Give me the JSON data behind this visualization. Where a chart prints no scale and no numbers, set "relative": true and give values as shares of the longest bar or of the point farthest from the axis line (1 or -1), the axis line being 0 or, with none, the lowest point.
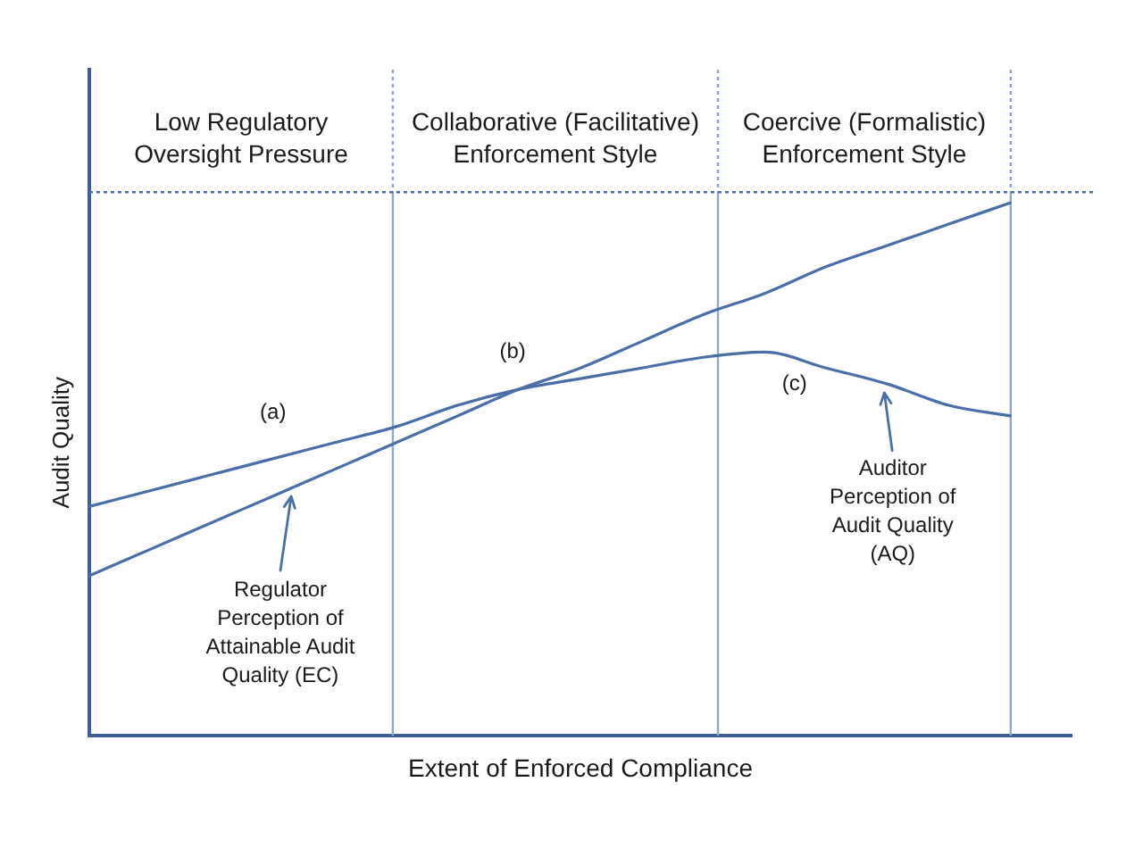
{
  "chart_data": {
    "type": "line",
    "xlabel": "Extent of Enforced Compliance",
    "ylabel": "Audit Quality",
    "relative": true,
    "categories": [
      null,
      null,
      null,
      null,
      null,
      null,
      null,
      null,
      null,
      null,
      null,
      null,
      null,
      null,
      null,
      null,
      null
    ],
    "series": [
      {
        "name": "Regulator Perception of Attainable Audit Quality (EC)",
        "color": "#4a6fa8",
        "values": [
          0.3,
          0.35,
          0.4,
          0.45,
          0.5,
          0.55,
          0.6,
          0.65,
          0.69,
          0.74,
          0.79,
          0.83,
          0.88,
          0.92,
          0.96,
          1.0,
          null
        ]
      },
      {
        "name": "Auditor Perception of Audit Quality (AQ)",
        "color": "#4a6fa8",
        "values": [
          0.43,
          0.46,
          0.49,
          0.52,
          0.55,
          0.58,
          0.62,
          0.65,
          0.67,
          0.69,
          0.71,
          0.72,
          0.69,
          0.66,
          0.62,
          0.6,
          null
        ]
      }
    ],
    "ref_lines": [
      {
        "axis": "y",
        "value": 1.02,
        "color": "#4a6fa8",
        "line_style": "dotted"
      }
    ],
    "annotations": [
      "Low Regulatory Oversight Pressure",
      "Collaborative (Facilitative) Enforcement Style",
      "Coercive (Formalistic) Enforcement Style",
      "(a)",
      "(b)",
      "(c)"
    ],
    "grid": false,
    "legend": false,
    "marker": "none",
    "line_style": "solid"
  }
}
